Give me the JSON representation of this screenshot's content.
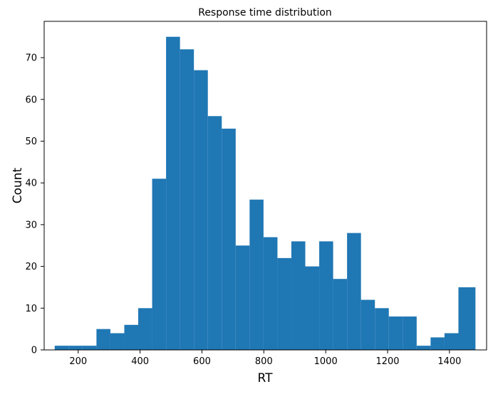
{
  "chart_data": {
    "type": "bar",
    "title": "Response time distribution",
    "xlabel": "RT",
    "ylabel": "Count",
    "xlim": [
      90,
      1520
    ],
    "ylim": [
      0,
      78.7
    ],
    "xticks": [
      200,
      400,
      600,
      800,
      1000,
      1200,
      1400
    ],
    "yticks": [
      0,
      10,
      20,
      30,
      40,
      50,
      60,
      70
    ],
    "bin_edges": [
      124,
      169,
      214,
      259,
      304,
      349,
      394,
      439,
      484,
      529,
      574,
      619,
      664,
      709,
      754,
      799,
      844,
      889,
      934,
      979,
      1024,
      1069,
      1114,
      1159,
      1204,
      1249,
      1294,
      1339,
      1384,
      1429,
      1484
    ],
    "counts": [
      1,
      1,
      1,
      5,
      4,
      6,
      10,
      41,
      75,
      72,
      67,
      56,
      53,
      25,
      36,
      27,
      22,
      26,
      20,
      26,
      17,
      28,
      12,
      10,
      8,
      8,
      1,
      3,
      4,
      15
    ],
    "bar_color": "#1f77b4",
    "grid": false
  }
}
